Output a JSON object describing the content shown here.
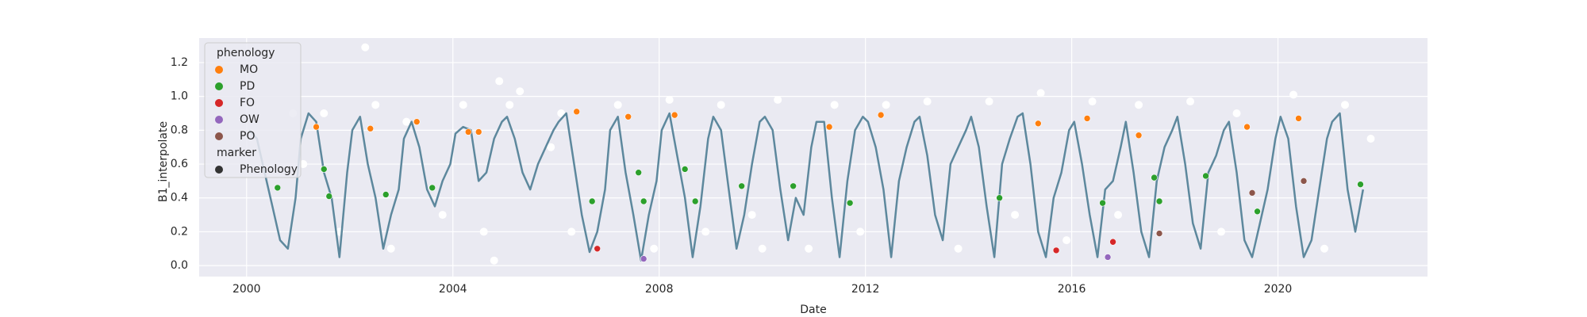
{
  "chart_data": {
    "type": "line",
    "xlabel": "Date",
    "ylabel": "B1_interpolate",
    "xlim": [
      1999.08,
      2022.9
    ],
    "ylim": [
      -0.065,
      1.345
    ],
    "xticks": [
      2000,
      2004,
      2008,
      2012,
      2016,
      2020
    ],
    "yticks": [
      {
        "value": 0,
        "label": "0.0"
      },
      0.2,
      0.4,
      0.6,
      0.8,
      {
        "value": 1,
        "label": "1.0"
      },
      1.2
    ],
    "grid": true,
    "legend": "upper left",
    "line": {
      "color": "#5d889d",
      "x": [
        2000.05,
        2000.2,
        2000.35,
        2000.5,
        2000.65,
        2000.8,
        2000.95,
        2001.05,
        2001.2,
        2001.35,
        2001.5,
        2001.65,
        2001.8,
        2001.95,
        2002.05,
        2002.2,
        2002.35,
        2002.5,
        2002.65,
        2002.8,
        2002.95,
        2003.05,
        2003.2,
        2003.35,
        2003.5,
        2003.65,
        2003.8,
        2003.95,
        2004.05,
        2004.2,
        2004.35,
        2004.5,
        2004.65,
        2004.8,
        2004.95,
        2005.05,
        2005.2,
        2005.35,
        2005.5,
        2005.65,
        2005.8,
        2005.95,
        2006.05,
        2006.2,
        2006.35,
        2006.5,
        2006.65,
        2006.8,
        2006.95,
        2007.05,
        2007.2,
        2007.35,
        2007.5,
        2007.65,
        2007.8,
        2007.95,
        2008.05,
        2008.2,
        2008.35,
        2008.5,
        2008.65,
        2008.8,
        2008.95,
        2009.05,
        2009.2,
        2009.35,
        2009.5,
        2009.65,
        2009.8,
        2009.95,
        2010.05,
        2010.2,
        2010.35,
        2010.5,
        2010.65,
        2010.8,
        2010.95,
        2011.05,
        2011.2,
        2011.35,
        2011.5,
        2011.65,
        2011.8,
        2011.95,
        2012.05,
        2012.2,
        2012.35,
        2012.5,
        2012.65,
        2012.8,
        2012.95,
        2013.05,
        2013.2,
        2013.35,
        2013.5,
        2013.65,
        2013.8,
        2013.95,
        2014.05,
        2014.2,
        2014.35,
        2014.5,
        2014.65,
        2014.8,
        2014.95,
        2015.05,
        2015.2,
        2015.35,
        2015.5,
        2015.65,
        2015.8,
        2015.95,
        2016.05,
        2016.2,
        2016.35,
        2016.5,
        2016.65,
        2016.8,
        2016.95,
        2017.05,
        2017.2,
        2017.35,
        2017.5,
        2017.65,
        2017.8,
        2017.95,
        2018.05,
        2018.2,
        2018.35,
        2018.5,
        2018.65,
        2018.8,
        2018.95,
        2019.05,
        2019.2,
        2019.35,
        2019.5,
        2019.65,
        2019.8,
        2019.95,
        2020.05,
        2020.2,
        2020.35,
        2020.5,
        2020.65,
        2020.8,
        2020.95,
        2021.05,
        2021.2,
        2021.35,
        2021.5,
        2021.65
      ],
      "values": [
        0.8,
        0.75,
        0.55,
        0.35,
        0.15,
        0.1,
        0.4,
        0.75,
        0.9,
        0.85,
        0.55,
        0.4,
        0.05,
        0.55,
        0.8,
        0.88,
        0.6,
        0.4,
        0.1,
        0.3,
        0.45,
        0.75,
        0.85,
        0.7,
        0.45,
        0.35,
        0.5,
        0.6,
        0.78,
        0.82,
        0.8,
        0.5,
        0.55,
        0.75,
        0.85,
        0.88,
        0.75,
        0.55,
        0.45,
        0.6,
        0.7,
        0.8,
        0.85,
        0.9,
        0.6,
        0.3,
        0.08,
        0.2,
        0.45,
        0.8,
        0.88,
        0.55,
        0.3,
        0.03,
        0.3,
        0.5,
        0.8,
        0.9,
        0.65,
        0.4,
        0.05,
        0.35,
        0.75,
        0.88,
        0.8,
        0.45,
        0.1,
        0.3,
        0.6,
        0.85,
        0.88,
        0.8,
        0.45,
        0.15,
        0.4,
        0.3,
        0.7,
        0.85,
        0.85,
        0.4,
        0.05,
        0.5,
        0.8,
        0.88,
        0.85,
        0.7,
        0.45,
        0.05,
        0.5,
        0.7,
        0.85,
        0.88,
        0.65,
        0.3,
        0.15,
        0.6,
        0.7,
        0.8,
        0.88,
        0.7,
        0.35,
        0.05,
        0.6,
        0.75,
        0.88,
        0.9,
        0.6,
        0.2,
        0.05,
        0.4,
        0.55,
        0.8,
        0.85,
        0.6,
        0.3,
        0.05,
        0.45,
        0.5,
        0.7,
        0.85,
        0.55,
        0.2,
        0.05,
        0.5,
        0.7,
        0.8,
        0.88,
        0.6,
        0.25,
        0.1,
        0.55,
        0.65,
        0.8,
        0.85,
        0.55,
        0.15,
        0.05,
        0.25,
        0.45,
        0.75,
        0.88,
        0.75,
        0.35,
        0.05,
        0.15,
        0.45,
        0.75,
        0.85,
        0.9,
        0.45,
        0.2,
        0.45
      ]
    },
    "scatter": {
      "color": "#ffffff",
      "x": [
        2000.9,
        2001.1,
        2001.8,
        2002.3,
        2002.5,
        2002.8,
        2003.1,
        2003.8,
        2004.2,
        2004.9,
        2005.1,
        2005.3,
        2004.6,
        2005.9,
        2006.1,
        2006.3,
        2007.2,
        2007.9,
        2008.2,
        2008.9,
        2009.2,
        2009.8,
        2010.3,
        2010.9,
        2011.4,
        2011.9,
        2012.4,
        2013.2,
        2013.8,
        2014.4,
        2014.9,
        2015.4,
        2015.9,
        2016.4,
        2016.9,
        2017.3,
        2018.3,
        2018.9,
        2019.2,
        2020.3,
        2020.9,
        2021.3,
        2021.8,
        2004.8,
        2010.0,
        2001.5
      ],
      "values": [
        0.9,
        0.6,
        0.2,
        1.29,
        0.95,
        0.1,
        0.85,
        0.3,
        0.95,
        1.09,
        0.95,
        1.03,
        0.2,
        0.7,
        0.9,
        0.2,
        0.95,
        0.1,
        0.98,
        0.2,
        0.95,
        0.3,
        0.98,
        0.1,
        0.95,
        0.2,
        0.95,
        0.97,
        0.1,
        0.97,
        0.3,
        1.02,
        0.15,
        0.97,
        0.3,
        0.95,
        0.97,
        0.2,
        0.9,
        1.01,
        0.1,
        0.95,
        0.75,
        0.03,
        0.1,
        0.9
      ]
    },
    "legend_title": "phenology",
    "series": [
      {
        "name": "MO",
        "color": "#ff7f0e",
        "x": [
          2001.35,
          2002.4,
          2003.3,
          2004.3,
          2004.5,
          2006.4,
          2007.4,
          2008.3,
          2011.3,
          2012.3,
          2015.35,
          2016.3,
          2017.3,
          2019.4,
          2020.4
        ],
        "values": [
          0.82,
          0.81,
          0.85,
          0.79,
          0.79,
          0.91,
          0.88,
          0.89,
          0.82,
          0.89,
          0.84,
          0.87,
          0.77,
          0.82,
          0.87
        ]
      },
      {
        "name": "PD",
        "color": "#2ca02c",
        "x": [
          2000.6,
          2001.5,
          2001.6,
          2002.7,
          2003.6,
          2006.7,
          2007.6,
          2007.7,
          2008.5,
          2008.7,
          2009.6,
          2010.6,
          2011.7,
          2014.6,
          2016.6,
          2017.6,
          2017.7,
          2018.6,
          2019.6,
          2021.6
        ],
        "values": [
          0.46,
          0.57,
          0.41,
          0.42,
          0.46,
          0.38,
          0.55,
          0.38,
          0.57,
          0.38,
          0.47,
          0.47,
          0.37,
          0.4,
          0.37,
          0.52,
          0.38,
          0.53,
          0.32,
          0.48
        ]
      },
      {
        "name": "FO",
        "color": "#d62728",
        "x": [
          2006.8,
          2015.7,
          2016.8
        ],
        "values": [
          0.1,
          0.09,
          0.14
        ]
      },
      {
        "name": "OW",
        "color": "#9467bd",
        "x": [
          2007.7,
          2016.7
        ],
        "values": [
          0.04,
          0.05
        ]
      },
      {
        "name": "PO",
        "color": "#8c564b",
        "x": [
          2017.7,
          2019.5,
          2020.5
        ],
        "values": [
          0.19,
          0.43,
          0.5
        ]
      }
    ],
    "marker_title": "marker",
    "marker": {
      "name": "Phenology",
      "color": "#333333"
    }
  }
}
